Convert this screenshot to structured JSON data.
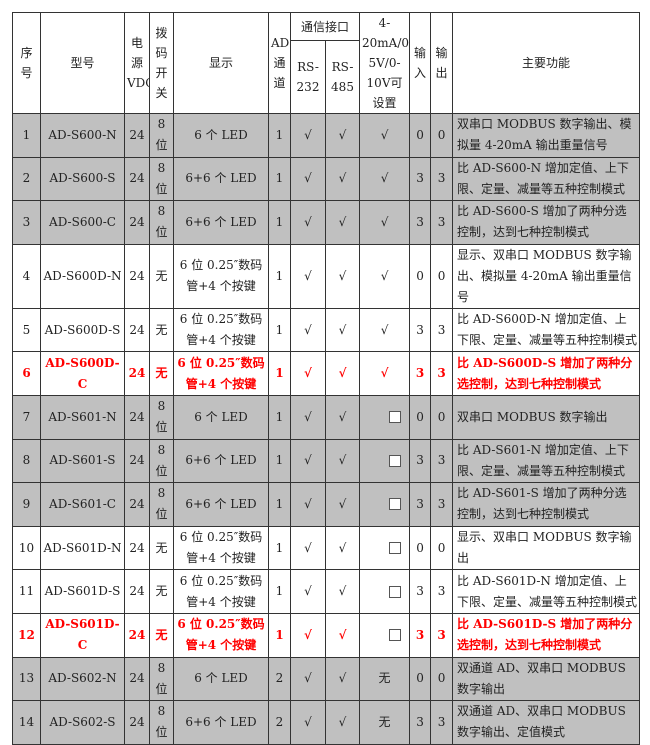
{
  "headers": {
    "no": "序号",
    "model": "型号",
    "power": "电源VDC",
    "dip": "拨码开关",
    "display": "显示",
    "ad": "AD通道",
    "comm": "通信接口",
    "rs232": "RS-232",
    "rs485": "RS-485",
    "analog": "4-20mA/0-5V/0-10V可设置",
    "input": "输入",
    "output": "输出",
    "function": "主要功能"
  },
  "symbols": {
    "check": "√",
    "none": "无"
  },
  "colors": {
    "gray_row": "#c0c0c0",
    "highlight_text": "#ff0000"
  },
  "rows": [
    {
      "no": "1",
      "model": "AD-S600-N",
      "power": "24",
      "dip": "8位",
      "display": "6 个 LED",
      "ad": "1",
      "rs232": "check",
      "rs485": "check",
      "analog": "check",
      "input": "0",
      "output": "0",
      "function": "双串口 MODBUS 数字输出、模拟量 4-20mA 输出重量信号",
      "style": "gray"
    },
    {
      "no": "2",
      "model": "AD-S600-S",
      "power": "24",
      "dip": "8位",
      "display": "6+6 个 LED",
      "ad": "1",
      "rs232": "check",
      "rs485": "check",
      "analog": "check",
      "input": "3",
      "output": "3",
      "function": "比 AD-S600-N 增加定值、上下限、定量、减量等五种控制模式",
      "style": "gray"
    },
    {
      "no": "3",
      "model": "AD-S600-C",
      "power": "24",
      "dip": "8位",
      "display": "6+6 个 LED",
      "ad": "1",
      "rs232": "check",
      "rs485": "check",
      "analog": "check",
      "input": "3",
      "output": "3",
      "function": "比 AD-S600-S 增加了两种分选控制，达到七种控制模式",
      "style": "gray"
    },
    {
      "no": "4",
      "model": "AD-S600D-N",
      "power": "24",
      "dip": "无",
      "display": "6 位 0.25″数码管+4 个按键",
      "ad": "1",
      "rs232": "check",
      "rs485": "check",
      "analog": "check",
      "input": "0",
      "output": "0",
      "function": "显示、双串口 MODBUS 数字输出、模拟量 4-20mA 输出重量信号",
      "style": "white"
    },
    {
      "no": "5",
      "model": "AD-S600D-S",
      "power": "24",
      "dip": "无",
      "display": "6 位 0.25″数码管+4 个按键",
      "ad": "1",
      "rs232": "check",
      "rs485": "check",
      "analog": "check",
      "input": "3",
      "output": "3",
      "function": "比 AD-S600D-N 增加定值、上下限、定量、减量等五种控制模式",
      "style": "white"
    },
    {
      "no": "6",
      "model": "AD-S600D-C",
      "power": "24",
      "dip": "无",
      "display": "6 位 0.25″数码管+4 个按键",
      "ad": "1",
      "rs232": "check",
      "rs485": "check",
      "analog": "check",
      "input": "3",
      "output": "3",
      "function": "比 AD-S600D-S 增加了两种分选控制，达到七种控制模式",
      "style": "red"
    },
    {
      "no": "7",
      "model": "AD-S601-N",
      "power": "24",
      "dip": "8位",
      "display": "6 个 LED",
      "ad": "1",
      "rs232": "check",
      "rs485": "check",
      "analog": "box",
      "input": "0",
      "output": "0",
      "function": "双串口 MODBUS 数字输出",
      "style": "gray"
    },
    {
      "no": "8",
      "model": "AD-S601-S",
      "power": "24",
      "dip": "8位",
      "display": "6+6 个 LED",
      "ad": "1",
      "rs232": "check",
      "rs485": "check",
      "analog": "box",
      "input": "3",
      "output": "3",
      "function": "比 AD-S601-N 增加定值、上下限、定量、减量等五种控制模式",
      "style": "gray"
    },
    {
      "no": "9",
      "model": "AD-S601-C",
      "power": "24",
      "dip": "8位",
      "display": "6+6 个 LED",
      "ad": "1",
      "rs232": "check",
      "rs485": "check",
      "analog": "box",
      "input": "3",
      "output": "3",
      "function": "比 AD-S601-S 增加了两种分选控制，达到七种控制模式",
      "style": "gray"
    },
    {
      "no": "10",
      "model": "AD-S601D-N",
      "power": "24",
      "dip": "无",
      "display": "6 位 0.25″数码管+4 个按键",
      "ad": "1",
      "rs232": "check",
      "rs485": "check",
      "analog": "box",
      "input": "0",
      "output": "0",
      "function": "显示、双串口 MODBUS 数字输出",
      "style": "white"
    },
    {
      "no": "11",
      "model": "AD-S601D-S",
      "power": "24",
      "dip": "无",
      "display": "6 位 0.25″数码管+4 个按键",
      "ad": "1",
      "rs232": "check",
      "rs485": "check",
      "analog": "box",
      "input": "3",
      "output": "3",
      "function": "比 AD-S601D-N 增加定值、上下限、定量、减量等五种控制模式",
      "style": "white"
    },
    {
      "no": "12",
      "model": "AD-S601D-C",
      "power": "24",
      "dip": "无",
      "display": "6 位 0.25″数码管+4 个按键",
      "ad": "1",
      "rs232": "check",
      "rs485": "check",
      "analog": "box",
      "input": "3",
      "output": "3",
      "function": "比 AD-S601D-S 增加了两种分选控制，达到七种控制模式",
      "style": "red"
    },
    {
      "no": "13",
      "model": "AD-S602-N",
      "power": "24",
      "dip": "8位",
      "display": "6 个 LED",
      "ad": "2",
      "rs232": "check",
      "rs485": "check",
      "analog": "none",
      "input": "0",
      "output": "0",
      "function": "双通道 AD、双串口 MODBUS 数字输出",
      "style": "gray"
    },
    {
      "no": "14",
      "model": "AD-S602-S",
      "power": "24",
      "dip": "8位",
      "display": "6+6 个 LED",
      "ad": "2",
      "rs232": "check",
      "rs485": "check",
      "analog": "none",
      "input": "3",
      "output": "3",
      "function": "双通道 AD、双串口 MODBUS 数字输出、定值模式",
      "style": "gray"
    }
  ]
}
